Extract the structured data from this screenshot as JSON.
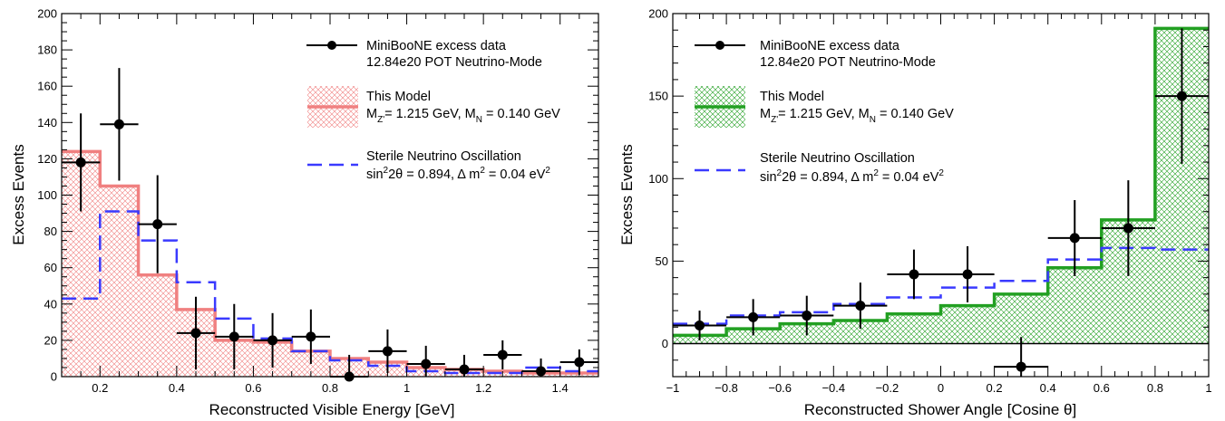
{
  "chart_data": [
    {
      "type": "histogram",
      "xlabel": "Reconstructed Visible Energy [GeV]",
      "ylabel": "Excess Events",
      "xlim": [
        0.1,
        1.5
      ],
      "ylim": [
        0,
        200
      ],
      "xticks": [
        "0.2",
        "0.4",
        "0.6",
        "0.8",
        "1",
        "1.2",
        "1.4"
      ],
      "yticks": [
        "0",
        "20",
        "40",
        "60",
        "80",
        "100",
        "120",
        "140",
        "160",
        "180",
        "200"
      ],
      "accent_color": "#f08080",
      "bin_edges": [
        0.1,
        0.2,
        0.3,
        0.4,
        0.5,
        0.6,
        0.7,
        0.8,
        0.9,
        1.0,
        1.1,
        1.2,
        1.3,
        1.4,
        1.5
      ],
      "series": [
        {
          "name": "MiniBooNE excess data",
          "kind": "points",
          "x": [
            0.15,
            0.25,
            0.35,
            0.45,
            0.55,
            0.65,
            0.75,
            0.85,
            0.95,
            1.05,
            1.15,
            1.25,
            1.35,
            1.45
          ],
          "y": [
            118,
            139,
            84,
            24,
            22,
            20,
            22,
            0,
            14,
            7,
            4,
            12,
            3,
            8
          ],
          "yerr": [
            27,
            31,
            27,
            20,
            18,
            15,
            15,
            12,
            12,
            10,
            8,
            8,
            7,
            7
          ]
        },
        {
          "name": "This Model",
          "kind": "hist-filled",
          "values": [
            124,
            105,
            56,
            37,
            20,
            19,
            14,
            10,
            8,
            5,
            4,
            3,
            2,
            2
          ]
        },
        {
          "name": "Sterile Neutrino Oscillation",
          "kind": "hist-dashed",
          "values": [
            43,
            91,
            75,
            52,
            32,
            21,
            14,
            9,
            6,
            3,
            2,
            2,
            5,
            3
          ]
        }
      ],
      "legend": {
        "data_line1": "MiniBooNE excess data",
        "data_line2": "12.84e20 POT Neutrino-Mode",
        "model_line1": "This Model",
        "model_line2_a": "M",
        "model_line2_sub1": "Z'",
        "model_line2_b": "= 1.215 GeV, M",
        "model_line2_sub2": "N",
        "model_line2_c": " = 0.140 GeV",
        "osc_line1": "Sterile Neutrino Oscillation",
        "osc_line2_a": "sin",
        "osc_line2_sup1": "2",
        "osc_line2_b": "2θ = 0.894, Δ m",
        "osc_line2_sup2": "2",
        "osc_line2_c": " = 0.04 eV",
        "osc_line2_sup3": "2"
      }
    },
    {
      "type": "histogram",
      "xlabel": "Reconstructed Shower Angle [Cosine θ]",
      "ylabel": "Excess Events",
      "xlim": [
        -1,
        1
      ],
      "ylim": [
        -20,
        200
      ],
      "xticks": [
        "−1",
        "−0.8",
        "−0.6",
        "−0.4",
        "−0.2",
        "0",
        "0.2",
        "0.4",
        "0.6",
        "0.8",
        "1"
      ],
      "yticks": [
        "0",
        "50",
        "100",
        "150",
        "200"
      ],
      "accent_color": "#22a022",
      "bin_edges": [
        -1.0,
        -0.8,
        -0.6,
        -0.4,
        -0.2,
        0.0,
        0.2,
        0.4,
        0.6,
        0.8,
        1.0
      ],
      "series": [
        {
          "name": "MiniBooNE excess data",
          "kind": "points",
          "x": [
            -0.9,
            -0.7,
            -0.5,
            -0.3,
            -0.1,
            0.1,
            0.3,
            0.5,
            0.7,
            0.9
          ],
          "y": [
            11,
            16,
            17,
            23,
            42,
            42,
            -14,
            64,
            70,
            150
          ],
          "yerr": [
            9,
            11,
            12,
            14,
            15,
            17,
            18,
            23,
            29,
            41
          ]
        },
        {
          "name": "This Model",
          "kind": "hist-filled",
          "values": [
            5,
            9,
            12,
            14,
            18,
            23,
            30,
            46,
            75,
            191
          ]
        },
        {
          "name": "Sterile Neutrino Oscillation",
          "kind": "hist-dashed",
          "values": [
            12,
            17,
            19,
            24,
            28,
            34,
            38,
            51,
            58,
            57
          ]
        }
      ],
      "legend": {
        "data_line1": "MiniBooNE excess data",
        "data_line2": "12.84e20 POT Neutrino-Mode",
        "model_line1": "This Model",
        "model_line2_a": "M",
        "model_line2_sub1": "Z'",
        "model_line2_b": "= 1.215 GeV, M",
        "model_line2_sub2": "N",
        "model_line2_c": " = 0.140 GeV",
        "osc_line1": "Sterile Neutrino Oscillation",
        "osc_line2_a": "sin",
        "osc_line2_sup1": "2",
        "osc_line2_b": "2θ = 0.894, Δ m",
        "osc_line2_sup2": "2",
        "osc_line2_c": " = 0.04 eV",
        "osc_line2_sup3": "2"
      }
    }
  ]
}
